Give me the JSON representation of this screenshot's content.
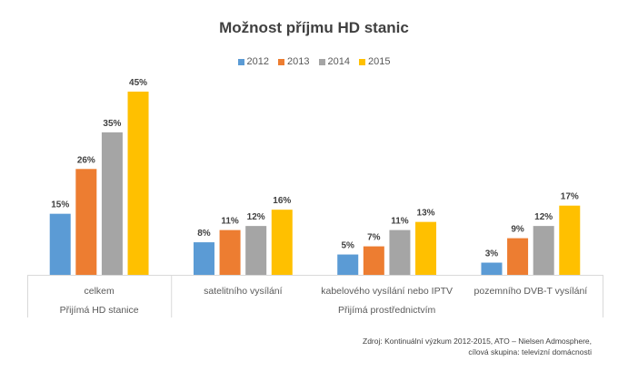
{
  "chart_data": {
    "type": "bar",
    "title": "Možnost příjmu HD stanic",
    "categories": [
      "celkem",
      "satelitního vysílání",
      "kabelového vysílání nebo IPTV",
      "pozemního DVB-T vysílání"
    ],
    "category_groups": [
      {
        "label": "Přijímá HD stanice",
        "categories": [
          "celkem"
        ]
      },
      {
        "label": "Přijímá prostřednictvím",
        "categories": [
          "satelitního vysílání",
          "kabelového vysílání nebo IPTV",
          "pozemního DVB-T vysílání"
        ]
      }
    ],
    "series": [
      {
        "name": "2012",
        "color": "#5B9BD5",
        "values": [
          15,
          8,
          5,
          3
        ]
      },
      {
        "name": "2013",
        "color": "#ED7D31",
        "values": [
          26,
          11,
          7,
          9
        ]
      },
      {
        "name": "2014",
        "color": "#A5A5A5",
        "values": [
          35,
          12,
          11,
          12
        ]
      },
      {
        "name": "2015",
        "color": "#FFC000",
        "values": [
          45,
          16,
          13,
          17
        ]
      }
    ],
    "value_format": "percent",
    "ylim": [
      0,
      45
    ],
    "grid": false,
    "legend": "top",
    "xlabel": "",
    "ylabel": ""
  },
  "source": {
    "line1": "Zdroj: Kontinuální výzkum 2012-2015, ATO – Nielsen Admosphere,",
    "line2": "cílová skupina: televizní domácnosti"
  }
}
